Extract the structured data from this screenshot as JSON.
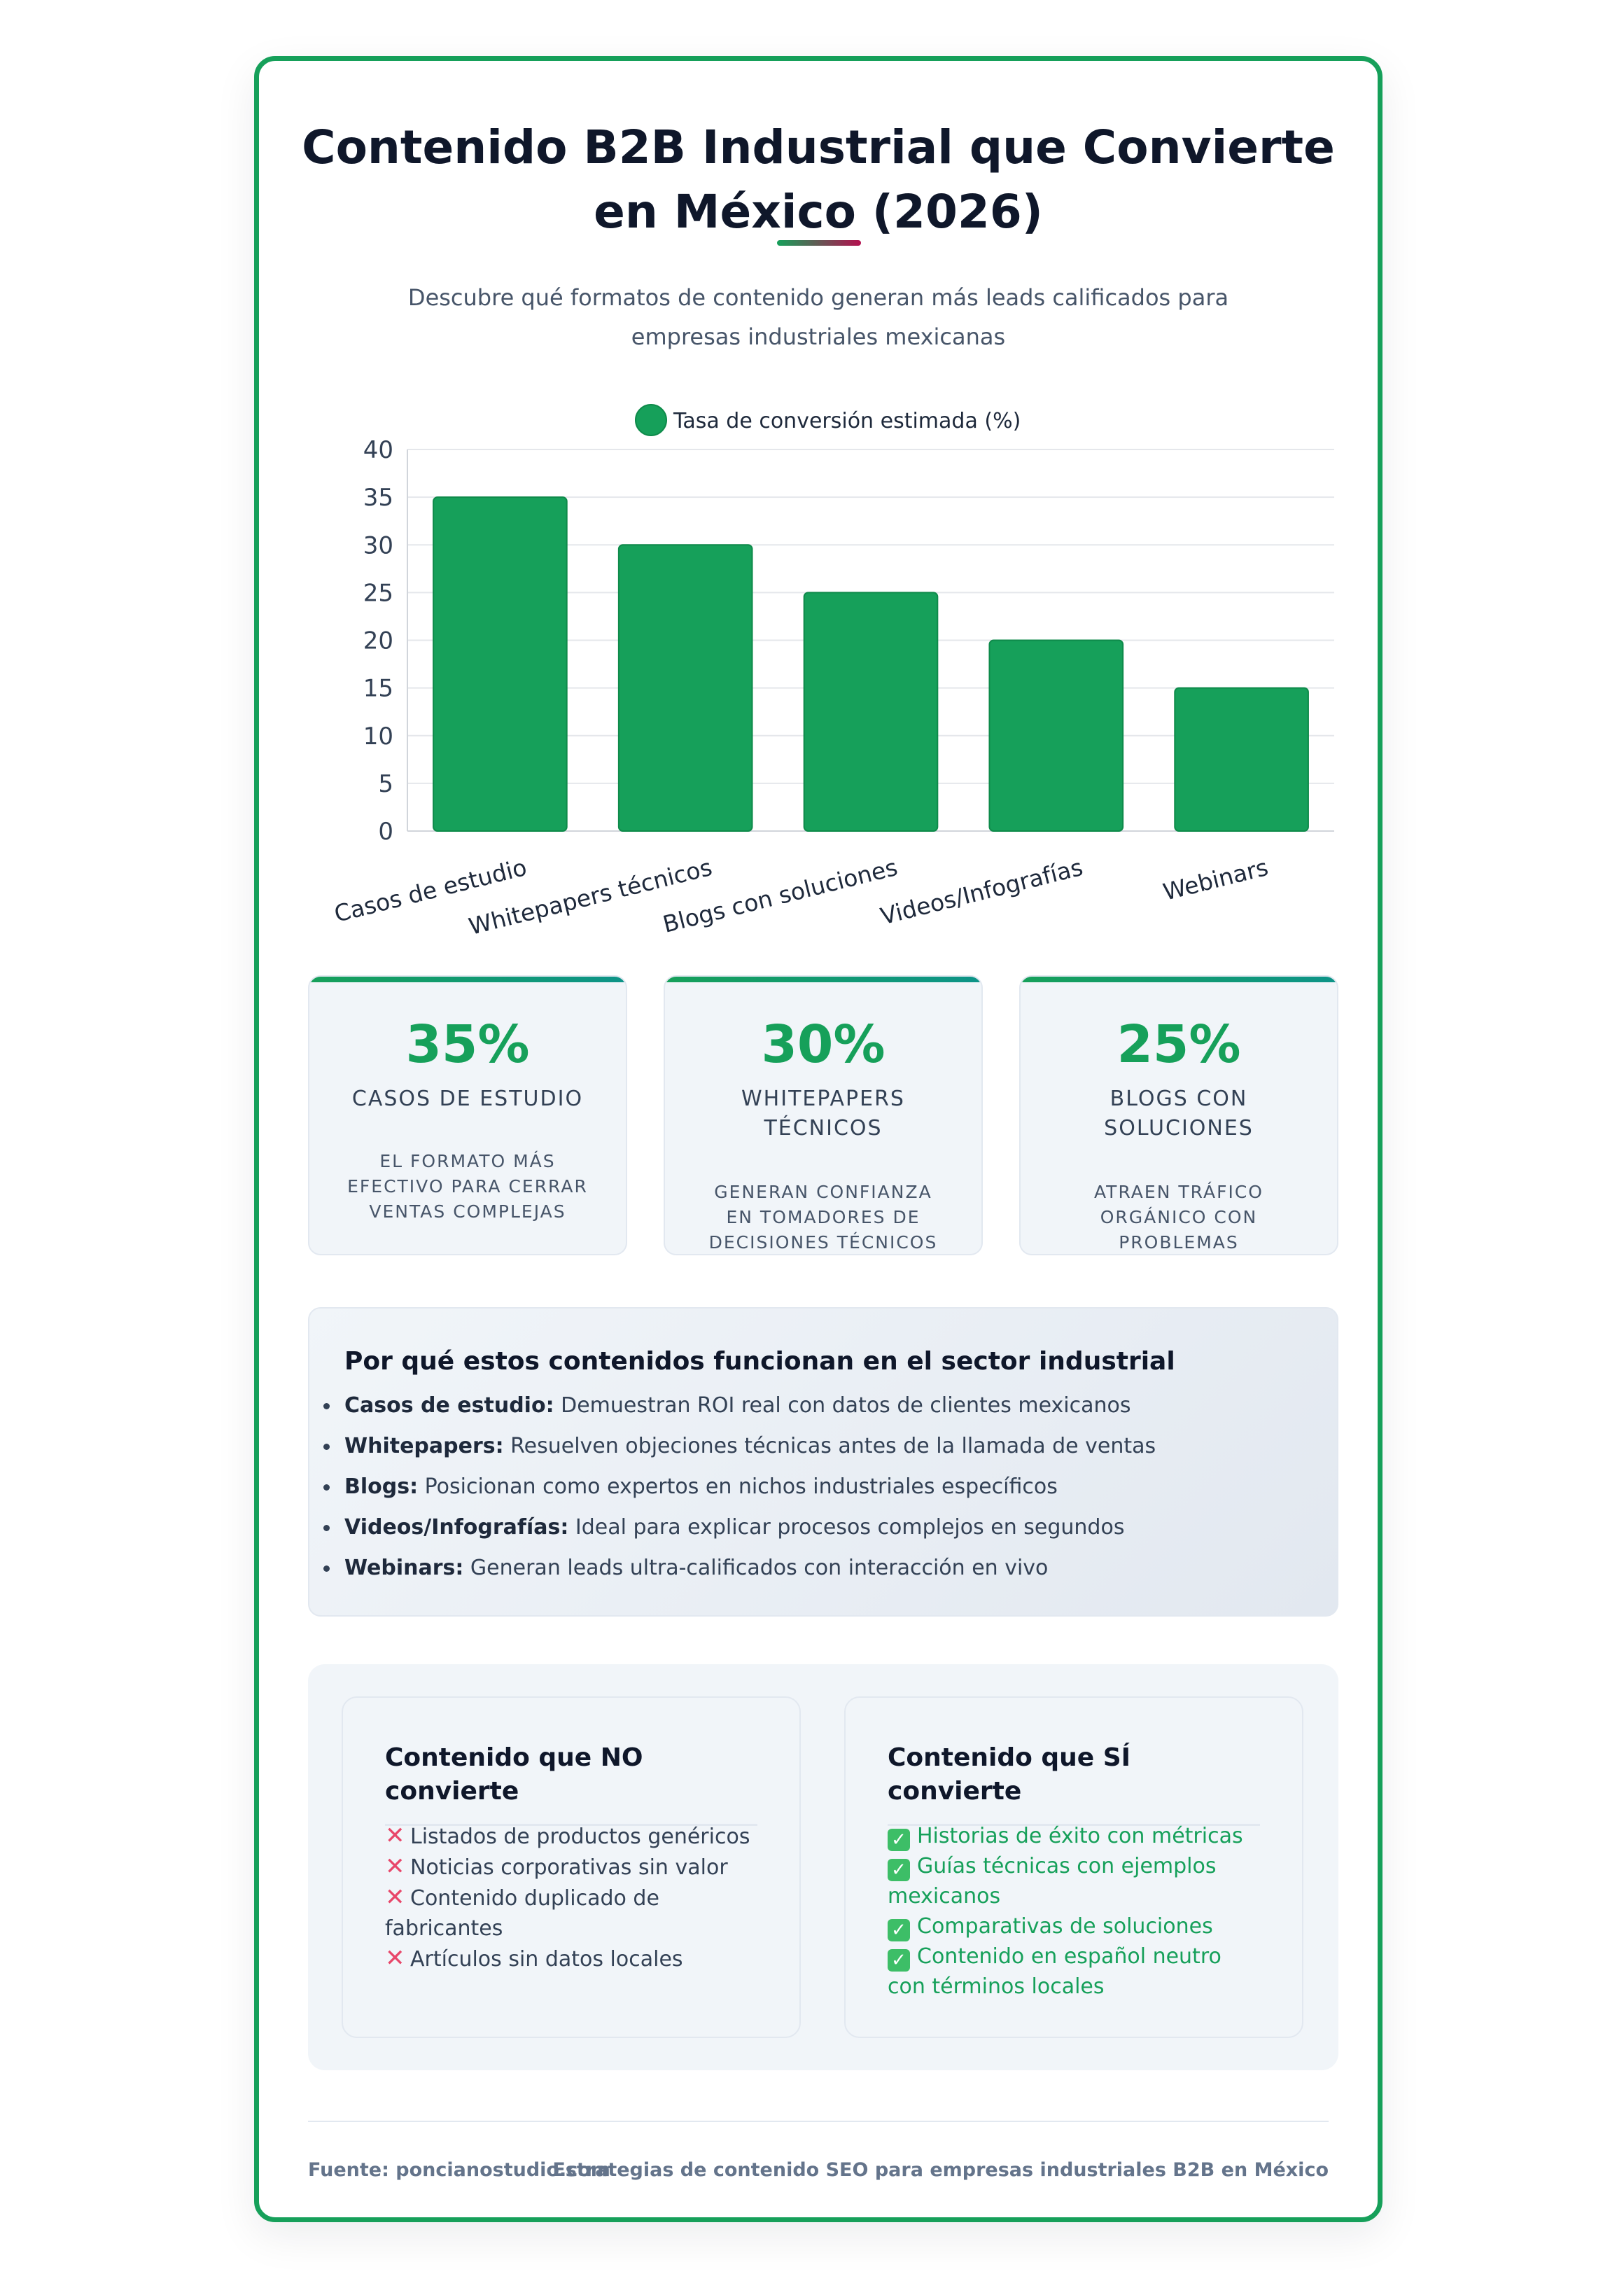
{
  "header": {
    "title": "Contenido B2B Industrial que Convierte en México (2026)",
    "subtitle": "Descubre qué formatos de contenido generan más leads calificados para empresas industriales mexicanas"
  },
  "colors": {
    "accent": "#16a05a",
    "negative": "#e8476a",
    "title": "#0f172a"
  },
  "chart_data": {
    "type": "bar",
    "categories": [
      "Casos de estudio",
      "Whitepapers técnicos",
      "Blogs con soluciones",
      "Videos/Infografías",
      "Webinars"
    ],
    "series": [
      {
        "name": "Tasa de conversión estimada (%)",
        "values": [
          35,
          30,
          25,
          20,
          15
        ],
        "color": "#16a05a"
      }
    ],
    "ylim": [
      0,
      40
    ],
    "yticks": [
      0,
      5,
      10,
      15,
      20,
      25,
      30,
      35,
      40
    ],
    "legend": "top-center",
    "grid": true,
    "xlabel": "",
    "ylabel": ""
  },
  "stats": [
    {
      "value": "35%",
      "label": "CASOS DE ESTUDIO",
      "desc": "EL FORMATO MÁS EFECTIVO PARA CERRAR VENTAS COMPLEJAS"
    },
    {
      "value": "30%",
      "label": "WHITEPAPERS TÉCNICOS",
      "desc": "GENERAN CONFIANZA EN TOMADORES DE DECISIONES TÉCNICOS"
    },
    {
      "value": "25%",
      "label": "BLOGS CON SOLUCIONES",
      "desc": "ATRAEN TRÁFICO ORGÁNICO CON PROBLEMAS ESPECÍFICOS"
    }
  ],
  "why": {
    "title": "Por qué estos contenidos funcionan en el sector industrial",
    "items": [
      {
        "term": "Casos de estudio:",
        "text": " Demuestran ROI real con datos de clientes mexicanos"
      },
      {
        "term": "Whitepapers:",
        "text": " Resuelven objeciones técnicas antes de la llamada de ventas"
      },
      {
        "term": "Blogs:",
        "text": " Posicionan como expertos en nichos industriales específicos"
      },
      {
        "term": "Videos/Infografías:",
        "text": " Ideal para explicar procesos complejos en segundos"
      },
      {
        "term": "Webinars:",
        "text": " Generan leads ultra-calificados con interacción en vivo"
      }
    ]
  },
  "compare": {
    "negative": {
      "title": "Contenido que NO convierte",
      "icon": "cross-mark-icon",
      "items": [
        "Listados de productos genéricos",
        "Noticias corporativas sin valor",
        "Contenido duplicado de fabricantes",
        "Artículos sin datos locales"
      ]
    },
    "positive": {
      "title": "Contenido que SÍ convierte",
      "icon": "check-box-icon",
      "items": [
        "Historias de éxito con métricas",
        "Guías técnicas con ejemplos mexicanos",
        "Comparativas de soluciones",
        "Contenido en español neutro con términos locales"
      ]
    }
  },
  "footer": {
    "source": "Fuente: poncianostudio.com",
    "tagline": "Estrategias de contenido SEO para empresas industriales B2B en México"
  }
}
